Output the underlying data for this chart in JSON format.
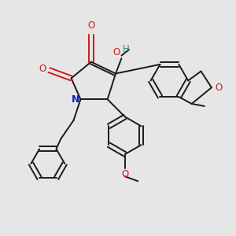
{
  "background_color": "#e6e6e6",
  "bond_color": "#1a1a1a",
  "nitrogen_color": "#1a1acc",
  "oxygen_color": "#cc1a1a",
  "oh_color": "#2a8888",
  "figsize": [
    3.0,
    3.0
  ],
  "dpi": 100,
  "xlim": [
    0,
    10
  ],
  "ylim": [
    0,
    10
  ]
}
